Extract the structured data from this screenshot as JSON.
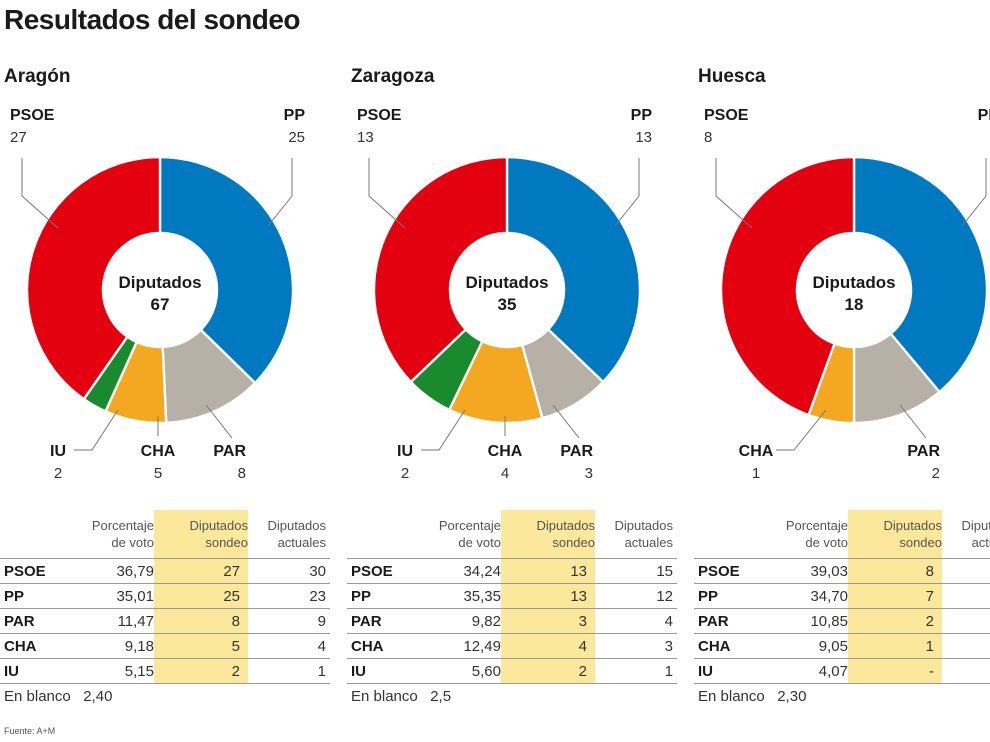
{
  "title": "Resultados del sondeo",
  "source": "Fuente: A+M",
  "center_label": "Diputados",
  "table_headers": {
    "pct": [
      "Porcentaje",
      "de voto"
    ],
    "sondeo": [
      "Diputados",
      "sondeo"
    ],
    "actuales": [
      "Diputados",
      "actuales"
    ]
  },
  "blank_label": "En blanco",
  "colors": {
    "PSOE": "#e3000f",
    "PP": "#0079c1",
    "PAR": "#b6b0a6",
    "CHA": "#f4a821",
    "IU": "#1a8a2e"
  },
  "chart_data": [
    {
      "type": "pie",
      "region": "Aragón",
      "total": "67",
      "slices": [
        {
          "name": "PP",
          "value": 25
        },
        {
          "name": "PAR",
          "value": 8
        },
        {
          "name": "CHA",
          "value": 5
        },
        {
          "name": "IU",
          "value": 2
        },
        {
          "name": "PSOE",
          "value": 27
        }
      ],
      "table": [
        {
          "party": "PSOE",
          "pct": "36,79",
          "sondeo": "27",
          "actuales": "30"
        },
        {
          "party": "PP",
          "pct": "35,01",
          "sondeo": "25",
          "actuales": "23"
        },
        {
          "party": "PAR",
          "pct": "11,47",
          "sondeo": "8",
          "actuales": "9"
        },
        {
          "party": "CHA",
          "pct": "9,18",
          "sondeo": "5",
          "actuales": "4"
        },
        {
          "party": "IU",
          "pct": "5,15",
          "sondeo": "2",
          "actuales": "1"
        }
      ],
      "blank": "2,40"
    },
    {
      "type": "pie",
      "region": "Zaragoza",
      "total": "35",
      "slices": [
        {
          "name": "PP",
          "value": 13
        },
        {
          "name": "PAR",
          "value": 3
        },
        {
          "name": "CHA",
          "value": 4
        },
        {
          "name": "IU",
          "value": 2
        },
        {
          "name": "PSOE",
          "value": 13
        }
      ],
      "table": [
        {
          "party": "PSOE",
          "pct": "34,24",
          "sondeo": "13",
          "actuales": "15"
        },
        {
          "party": "PP",
          "pct": "35,35",
          "sondeo": "13",
          "actuales": "12"
        },
        {
          "party": "PAR",
          "pct": "9,82",
          "sondeo": "3",
          "actuales": "4"
        },
        {
          "party": "CHA",
          "pct": "12,49",
          "sondeo": "4",
          "actuales": "3"
        },
        {
          "party": "IU",
          "pct": "5,60",
          "sondeo": "2",
          "actuales": "1"
        }
      ],
      "blank": "2,5"
    },
    {
      "type": "pie",
      "region": "Huesca",
      "total": "18",
      "slices": [
        {
          "name": "PP",
          "value": 7
        },
        {
          "name": "PAR",
          "value": 2
        },
        {
          "name": "CHA",
          "value": 1
        },
        {
          "name": "PSOE",
          "value": 8
        }
      ],
      "table": [
        {
          "party": "PSOE",
          "pct": "39,03",
          "sondeo": "8",
          "actuales": ""
        },
        {
          "party": "PP",
          "pct": "34,70",
          "sondeo": "7",
          "actuales": ""
        },
        {
          "party": "PAR",
          "pct": "10,85",
          "sondeo": "2",
          "actuales": ""
        },
        {
          "party": "CHA",
          "pct": "9,05",
          "sondeo": "1",
          "actuales": ""
        },
        {
          "party": "IU",
          "pct": "4,07",
          "sondeo": "-",
          "actuales": ""
        }
      ],
      "blank": "2,30"
    }
  ]
}
